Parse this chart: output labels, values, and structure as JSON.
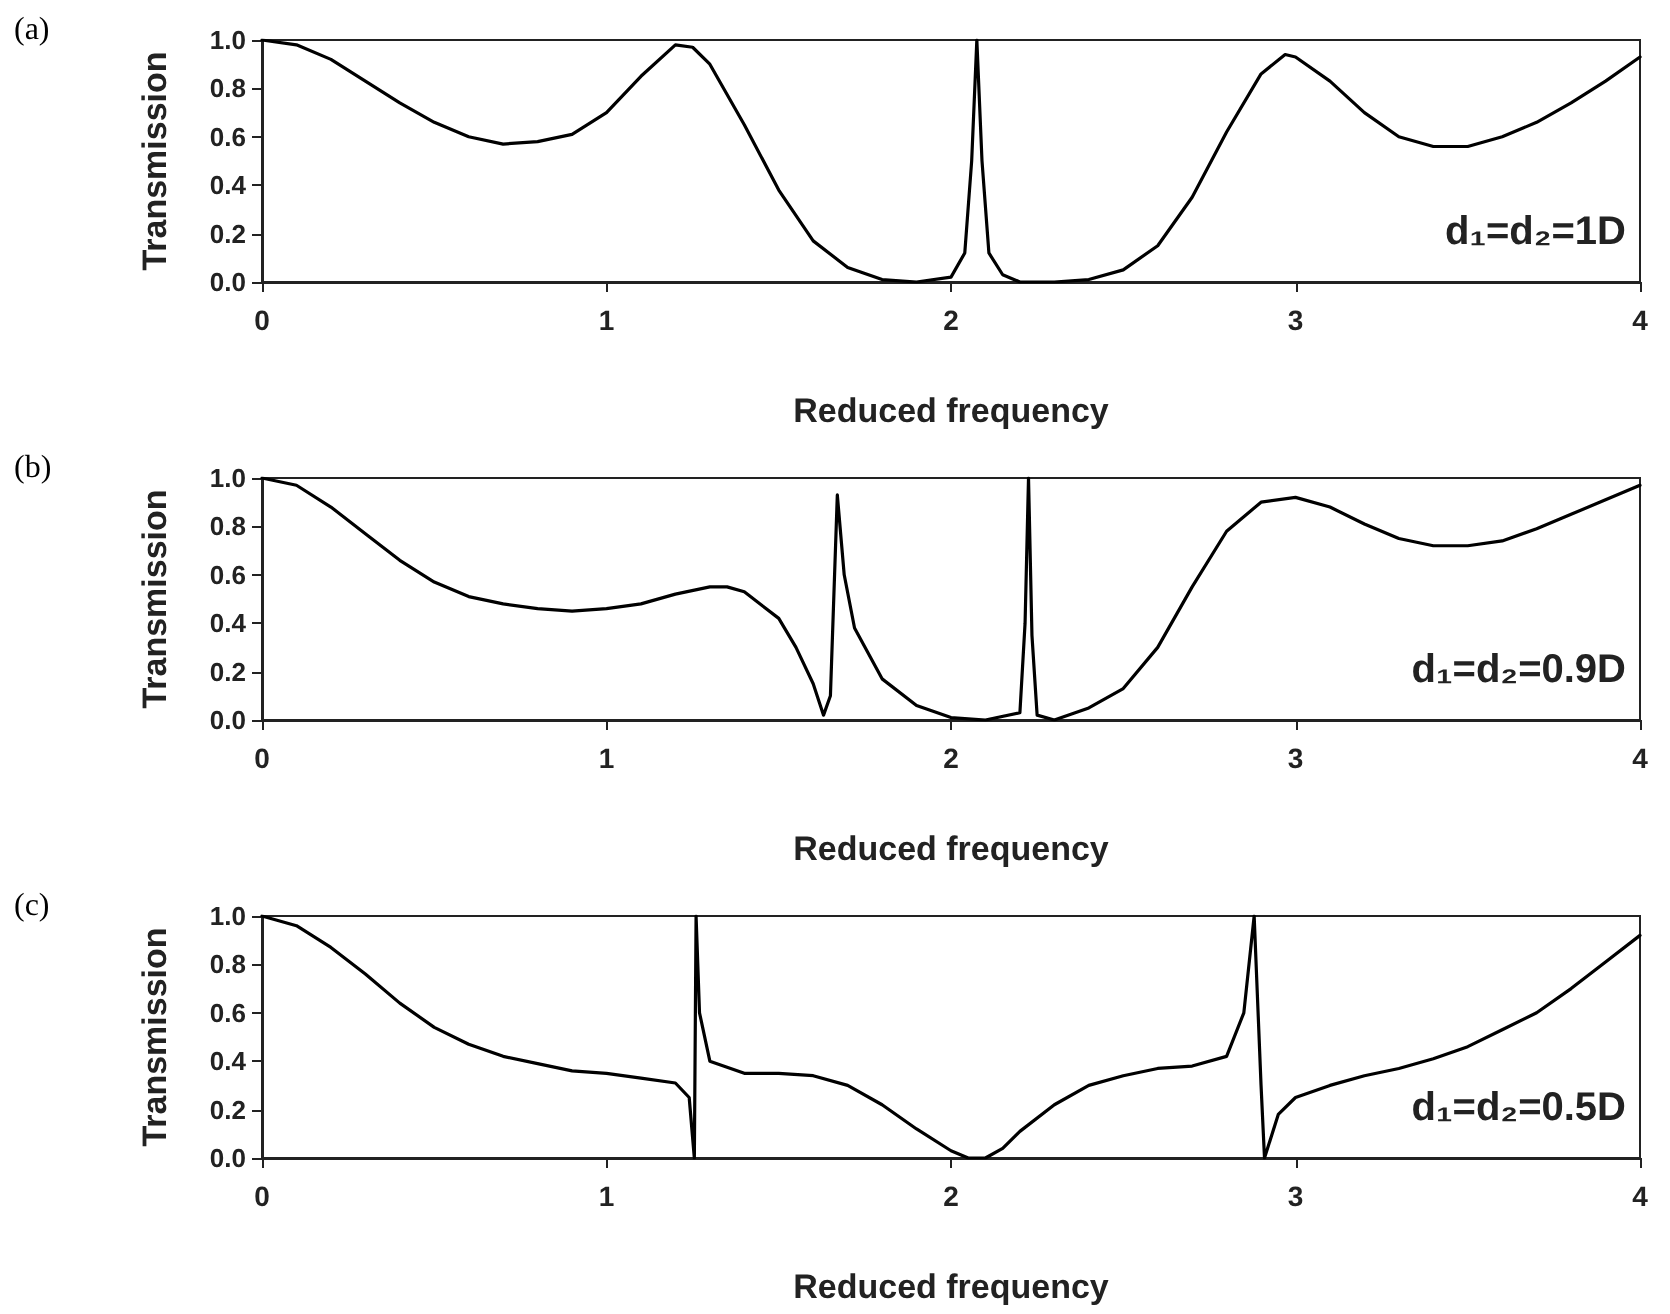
{
  "chart_data": [
    {
      "type": "line",
      "title": "(a)",
      "xlabel": "Reduced frequency",
      "ylabel": "Transmission",
      "annotations": [
        "d₁=d₂=1D"
      ],
      "xlim": [
        0,
        4
      ],
      "ylim": [
        0,
        1
      ],
      "xticks": [
        0,
        1,
        2,
        3,
        4
      ],
      "yticks": [
        {
          "value": 0,
          "label": "0.0"
        },
        {
          "value": 0.2,
          "label": "0.2"
        },
        {
          "value": 0.4,
          "label": "0.4"
        },
        {
          "value": 0.6,
          "label": "0.6"
        },
        {
          "value": 0.8,
          "label": "0.8"
        },
        {
          "value": 1,
          "label": "1.0"
        }
      ],
      "grid": false,
      "marker": "none",
      "line_style": "solid",
      "series": [
        {
          "color": "#000000",
          "x": [
            0,
            0.1,
            0.2,
            0.3,
            0.4,
            0.5,
            0.6,
            0.7,
            0.8,
            0.9,
            1.0,
            1.1,
            1.2,
            1.25,
            1.3,
            1.4,
            1.5,
            1.6,
            1.7,
            1.8,
            1.9,
            2.0,
            2.04,
            2.06,
            2.075,
            2.09,
            2.11,
            2.15,
            2.2,
            2.3,
            2.4,
            2.5,
            2.6,
            2.7,
            2.8,
            2.9,
            2.97,
            3.0,
            3.1,
            3.2,
            3.3,
            3.4,
            3.5,
            3.6,
            3.7,
            3.8,
            3.9,
            4.0
          ],
          "values": [
            1.0,
            0.98,
            0.92,
            0.83,
            0.74,
            0.66,
            0.6,
            0.57,
            0.58,
            0.61,
            0.7,
            0.85,
            0.98,
            0.97,
            0.9,
            0.65,
            0.38,
            0.17,
            0.06,
            0.01,
            0.0,
            0.02,
            0.12,
            0.5,
            1.0,
            0.5,
            0.12,
            0.03,
            0.0,
            0.0,
            0.01,
            0.05,
            0.15,
            0.35,
            0.62,
            0.86,
            0.94,
            0.93,
            0.83,
            0.7,
            0.6,
            0.56,
            0.56,
            0.6,
            0.66,
            0.74,
            0.83,
            0.93
          ]
        }
      ]
    },
    {
      "type": "line",
      "title": "(b)",
      "xlabel": "Reduced frequency",
      "ylabel": "Transmission",
      "annotations": [
        "d₁=d₂=0.9D"
      ],
      "xlim": [
        0,
        4
      ],
      "ylim": [
        0,
        1
      ],
      "xticks": [
        0,
        1,
        2,
        3,
        4
      ],
      "yticks": [
        {
          "value": 0,
          "label": "0.0"
        },
        {
          "value": 0.2,
          "label": "0.2"
        },
        {
          "value": 0.4,
          "label": "0.4"
        },
        {
          "value": 0.6,
          "label": "0.6"
        },
        {
          "value": 0.8,
          "label": "0.8"
        },
        {
          "value": 1,
          "label": "1.0"
        }
      ],
      "grid": false,
      "marker": "none",
      "line_style": "solid",
      "series": [
        {
          "color": "#000000",
          "x": [
            0,
            0.1,
            0.2,
            0.3,
            0.4,
            0.5,
            0.6,
            0.7,
            0.8,
            0.9,
            1.0,
            1.1,
            1.2,
            1.3,
            1.35,
            1.4,
            1.5,
            1.55,
            1.6,
            1.63,
            1.65,
            1.67,
            1.69,
            1.72,
            1.8,
            1.9,
            2.0,
            2.1,
            2.2,
            2.215,
            2.225,
            2.235,
            2.25,
            2.3,
            2.4,
            2.5,
            2.6,
            2.7,
            2.8,
            2.9,
            3.0,
            3.1,
            3.2,
            3.3,
            3.4,
            3.5,
            3.6,
            3.7,
            3.8,
            3.9,
            4.0
          ],
          "values": [
            1.0,
            0.97,
            0.88,
            0.77,
            0.66,
            0.57,
            0.51,
            0.48,
            0.46,
            0.45,
            0.46,
            0.48,
            0.52,
            0.55,
            0.55,
            0.53,
            0.42,
            0.3,
            0.15,
            0.02,
            0.1,
            0.93,
            0.6,
            0.38,
            0.17,
            0.06,
            0.01,
            0.0,
            0.03,
            0.4,
            1.0,
            0.35,
            0.02,
            0.0,
            0.05,
            0.13,
            0.3,
            0.55,
            0.78,
            0.9,
            0.92,
            0.88,
            0.81,
            0.75,
            0.72,
            0.72,
            0.74,
            0.79,
            0.85,
            0.91,
            0.97
          ]
        }
      ]
    },
    {
      "type": "line",
      "title": "(c)",
      "xlabel": "Reduced frequency",
      "ylabel": "Transmission",
      "annotations": [
        "d₁=d₂=0.5D"
      ],
      "xlim": [
        0,
        4
      ],
      "ylim": [
        0,
        1
      ],
      "xticks": [
        0,
        1,
        2,
        3,
        4
      ],
      "yticks": [
        {
          "value": 0,
          "label": "0.0"
        },
        {
          "value": 0.2,
          "label": "0.2"
        },
        {
          "value": 0.4,
          "label": "0.4"
        },
        {
          "value": 0.6,
          "label": "0.6"
        },
        {
          "value": 0.8,
          "label": "0.8"
        },
        {
          "value": 1,
          "label": "1.0"
        }
      ],
      "grid": false,
      "marker": "none",
      "line_style": "solid",
      "series": [
        {
          "color": "#000000",
          "x": [
            0,
            0.1,
            0.2,
            0.3,
            0.4,
            0.5,
            0.6,
            0.7,
            0.8,
            0.9,
            1.0,
            1.1,
            1.2,
            1.24,
            1.255,
            1.26,
            1.27,
            1.3,
            1.4,
            1.5,
            1.6,
            1.7,
            1.8,
            1.9,
            2.0,
            2.05,
            2.1,
            2.15,
            2.2,
            2.3,
            2.4,
            2.5,
            2.6,
            2.7,
            2.8,
            2.85,
            2.88,
            2.9,
            2.91,
            2.95,
            3.0,
            3.1,
            3.2,
            3.3,
            3.4,
            3.5,
            3.6,
            3.7,
            3.8,
            3.9,
            4.0
          ],
          "values": [
            1.0,
            0.96,
            0.87,
            0.76,
            0.64,
            0.54,
            0.47,
            0.42,
            0.39,
            0.36,
            0.35,
            0.33,
            0.31,
            0.25,
            0.0,
            1.0,
            0.6,
            0.4,
            0.35,
            0.35,
            0.34,
            0.3,
            0.22,
            0.12,
            0.03,
            0.0,
            0.0,
            0.04,
            0.11,
            0.22,
            0.3,
            0.34,
            0.37,
            0.38,
            0.42,
            0.6,
            1.0,
            0.3,
            0.0,
            0.18,
            0.25,
            0.3,
            0.34,
            0.37,
            0.41,
            0.46,
            0.53,
            0.6,
            0.7,
            0.81,
            0.92
          ]
        }
      ]
    }
  ]
}
